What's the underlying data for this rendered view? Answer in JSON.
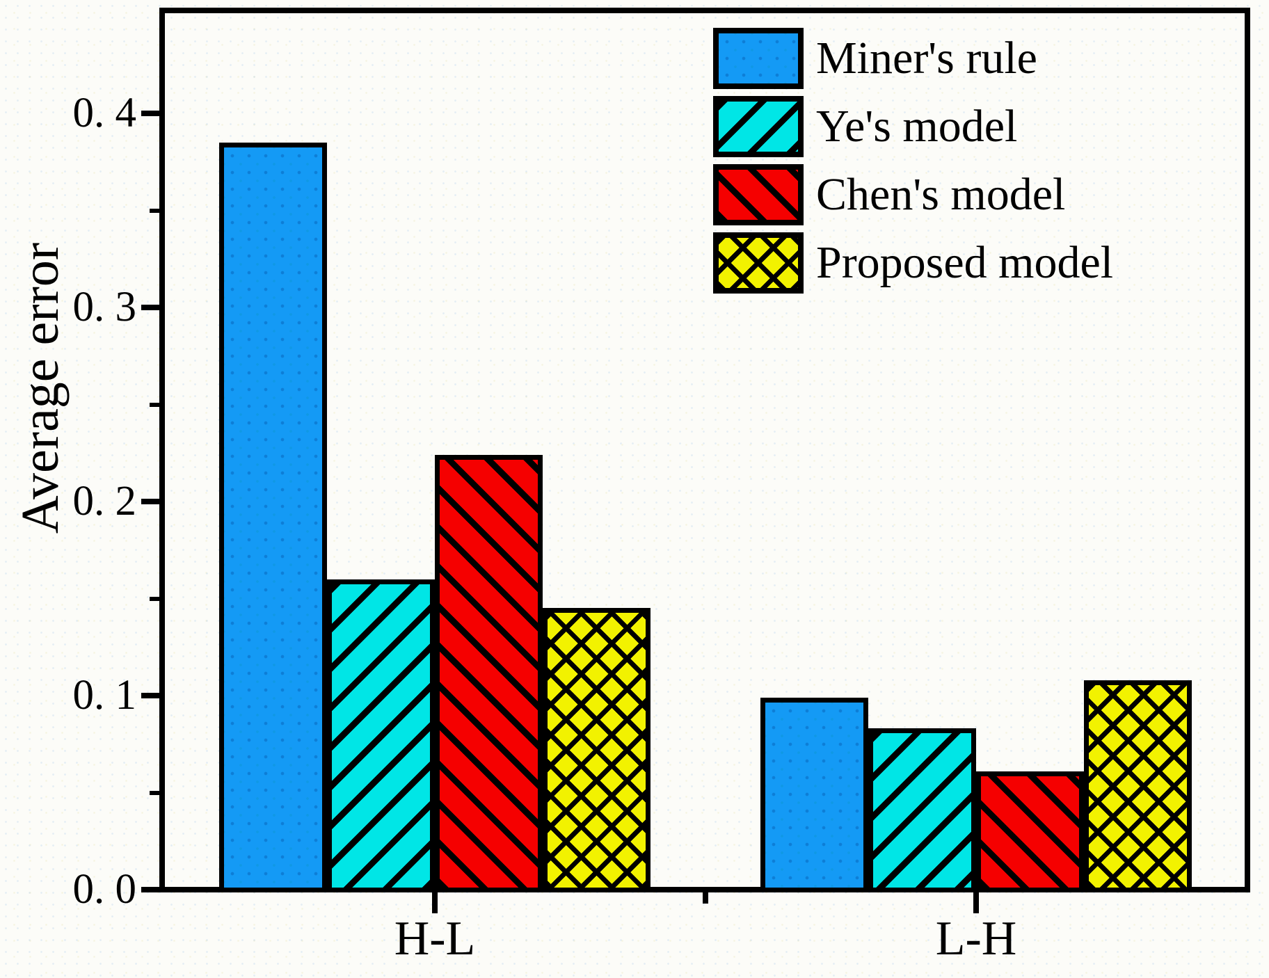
{
  "chart_data": {
    "type": "bar",
    "title": "",
    "xlabel": "",
    "ylabel": "Average error",
    "categories": [
      "H-L",
      "L-H"
    ],
    "series": [
      {
        "name": "Miner's rule",
        "color": "#149af5",
        "hatch": "dots",
        "values": [
          0.385,
          0.099
        ]
      },
      {
        "name": "Ye's model",
        "color": "#00e6e6",
        "hatch": "fwd",
        "values": [
          0.16,
          0.083
        ]
      },
      {
        "name": "Chen's model",
        "color": "#f50000",
        "hatch": "back",
        "values": [
          0.224,
          0.061
        ]
      },
      {
        "name": "Proposed model",
        "color": "#f2f200",
        "hatch": "cross",
        "values": [
          0.145,
          0.108
        ]
      }
    ],
    "ylim": [
      0,
      0.45
    ],
    "yticks": {
      "values": [
        0.0,
        0.1,
        0.2,
        0.3,
        0.4
      ],
      "labels": [
        "0. 0",
        "0. 1",
        "0. 2",
        "0. 3",
        "0. 4"
      ]
    },
    "minor_tick_values": [
      0.05,
      0.15,
      0.25,
      0.35
    ],
    "grid": false,
    "legend_position": "top-right",
    "axis_color": "#000000",
    "hatch_line_color": "#000000"
  }
}
